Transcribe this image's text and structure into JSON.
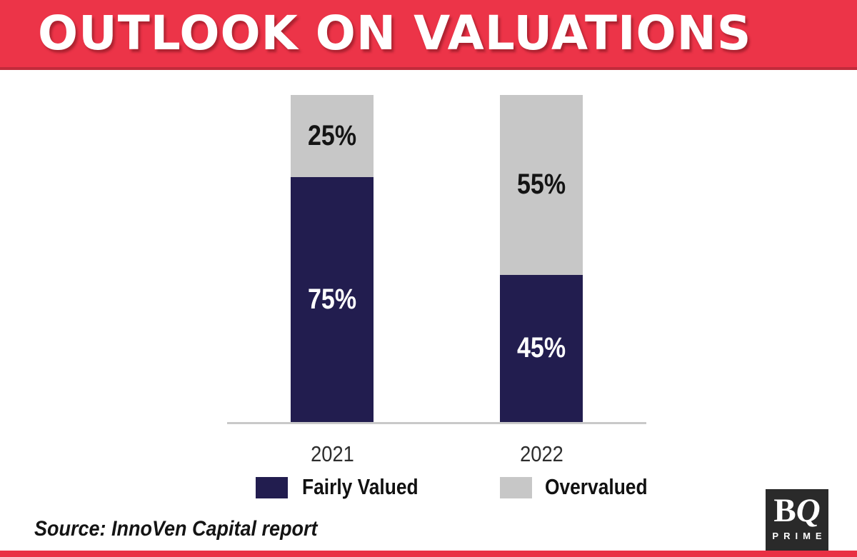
{
  "header": {
    "title": "OUTLOOK ON VALUATIONS",
    "background_color": "#ec3448"
  },
  "chart_data": {
    "type": "bar",
    "subtype": "stacked-100-percent-column",
    "title": "OUTLOOK ON VALUATIONS",
    "categories": [
      "2021",
      "2022"
    ],
    "series": [
      {
        "name": "Overvalued",
        "color": "#c7c7c7",
        "values": [
          25,
          55
        ],
        "labels": [
          "25%",
          "55%"
        ],
        "label_color": "#141414",
        "stack_position": "top"
      },
      {
        "name": "Fairly Valued",
        "color": "#221d4f",
        "values": [
          75,
          45
        ],
        "labels": [
          "75%",
          "45%"
        ],
        "label_color": "#ffffff",
        "stack_position": "bottom"
      }
    ],
    "ylim": [
      0,
      100
    ],
    "grid": false,
    "y_axis_visible": false,
    "legend_position": "bottom",
    "axis_line_color": "#c9c9c9"
  },
  "legend": {
    "fairly_valued_label": "Fairly Valued",
    "overvalued_label": "Overvalued"
  },
  "source": {
    "text": "Source: InnoVen Capital report"
  },
  "logo": {
    "letter_b": "B",
    "letter_q": "Q",
    "subtext": "PRIME",
    "background_color": "#2a2a2a"
  },
  "colors": {
    "banner_red": "#ec3448",
    "bottom_strip_red": "#e93044",
    "navy": "#221d4f",
    "gray": "#c7c7c7"
  }
}
